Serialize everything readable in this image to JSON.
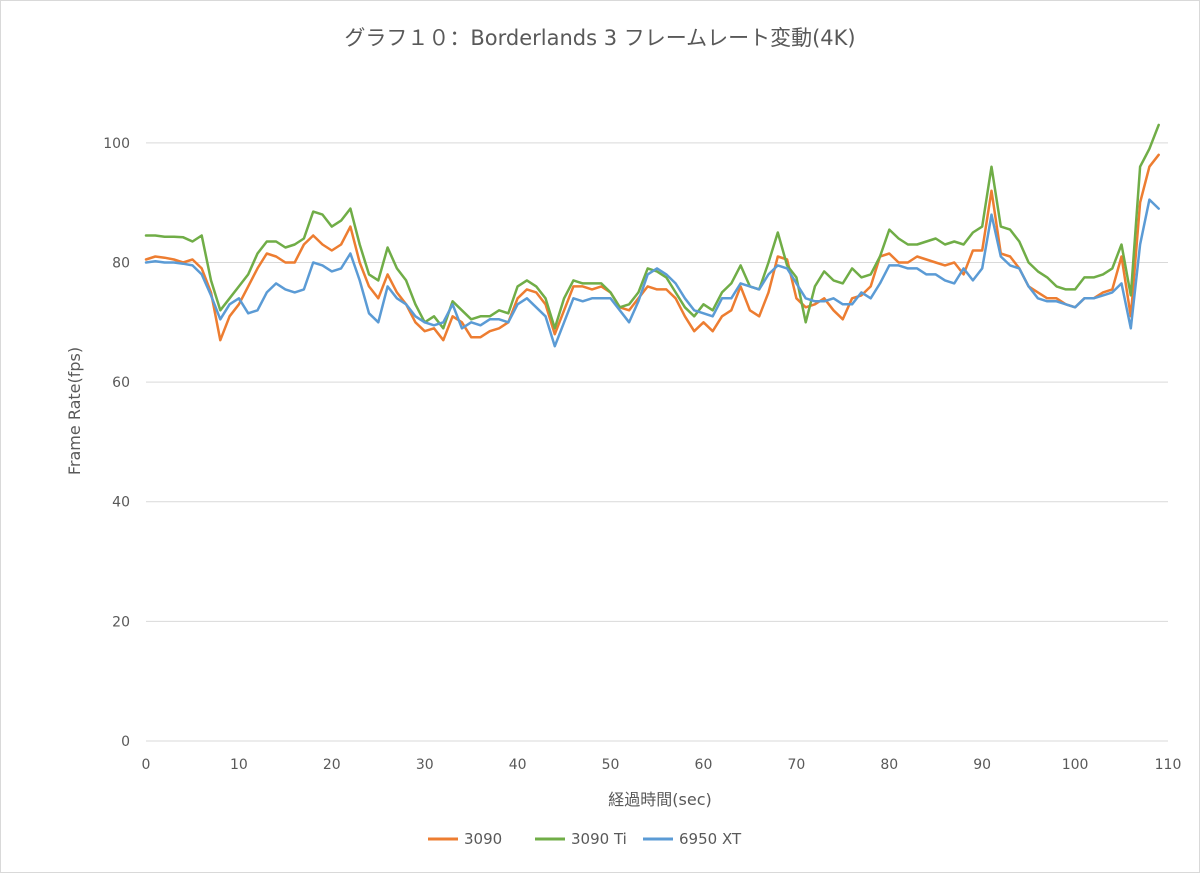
{
  "chart_data": {
    "type": "line",
    "title": "グラフ１０：Borderlands 3 フレームレート変動(4K)",
    "xlabel": "経過時間(sec)",
    "ylabel": "Frame Rate(fps)",
    "xlim": [
      0,
      110
    ],
    "ylim": [
      0,
      110
    ],
    "x_ticks": [
      "0",
      "10",
      "20",
      "30",
      "40",
      "50",
      "60",
      "70",
      "80",
      "90",
      "100",
      "110"
    ],
    "y_ticks": [
      "0",
      "20",
      "40",
      "60",
      "80",
      "100"
    ],
    "grid": "horizontal",
    "legend": "bottom",
    "x": [
      0,
      1,
      2,
      3,
      4,
      5,
      6,
      7,
      8,
      9,
      10,
      11,
      12,
      13,
      14,
      15,
      16,
      17,
      18,
      19,
      20,
      21,
      22,
      23,
      24,
      25,
      26,
      27,
      28,
      29,
      30,
      31,
      32,
      33,
      34,
      35,
      36,
      37,
      38,
      39,
      40,
      41,
      42,
      43,
      44,
      45,
      46,
      47,
      48,
      49,
      50,
      51,
      52,
      53,
      54,
      55,
      56,
      57,
      58,
      59,
      60,
      61,
      62,
      63,
      64,
      65,
      66,
      67,
      68,
      69,
      70,
      71,
      72,
      73,
      74,
      75,
      76,
      77,
      78,
      79,
      80,
      81,
      82,
      83,
      84,
      85,
      86,
      87,
      88,
      89,
      90,
      91,
      92,
      93,
      94,
      95,
      96,
      97,
      98,
      99,
      100,
      101,
      102,
      103,
      104,
      105,
      106,
      107,
      108,
      109
    ],
    "series": [
      {
        "name": "3090",
        "color": "#ed7d31",
        "values": [
          80.5,
          81,
          80.8,
          80.5,
          80,
          80.5,
          79,
          75,
          67,
          71,
          73,
          76,
          79,
          81.5,
          81,
          80,
          80,
          83,
          84.5,
          83,
          82,
          83,
          86,
          80,
          76,
          74,
          78,
          75,
          73,
          70,
          68.5,
          69,
          67,
          71,
          70,
          67.5,
          67.5,
          68.5,
          69,
          70,
          74,
          75.5,
          75,
          73,
          68,
          72,
          76,
          76,
          75.5,
          76,
          75,
          72.5,
          72,
          74,
          76,
          75.5,
          75.5,
          74,
          71,
          68.5,
          70,
          68.5,
          71,
          72,
          76,
          72,
          71,
          75,
          81,
          80.5,
          74,
          72.5,
          73,
          74,
          72,
          70.5,
          74,
          74.5,
          76,
          81,
          81.5,
          80,
          80,
          81,
          80.5,
          80,
          79.5,
          80,
          78,
          82,
          82,
          92,
          81.5,
          81,
          79,
          76,
          75,
          74,
          74,
          73,
          72.5,
          74,
          74,
          75,
          75.5,
          81,
          71,
          90,
          96,
          98
        ]
      },
      {
        "name": "3090 Ti",
        "color": "#70ad47",
        "values": [
          84.5,
          84.5,
          84.3,
          84.3,
          84.2,
          83.5,
          84.5,
          77,
          72,
          74,
          76,
          78,
          81.5,
          83.5,
          83.5,
          82.5,
          83,
          84,
          88.5,
          88,
          86,
          87,
          89,
          83,
          78,
          77,
          82.5,
          79,
          77,
          73,
          70,
          71,
          69,
          73.5,
          72,
          70.5,
          71,
          71,
          72,
          71.5,
          76,
          77,
          76,
          74,
          69,
          74,
          77,
          76.5,
          76.5,
          76.5,
          75,
          72.5,
          73,
          75,
          79,
          78.5,
          77.5,
          75,
          72.5,
          71,
          73,
          72,
          75,
          76.5,
          79.5,
          76,
          75.5,
          80,
          85,
          79.5,
          77.5,
          70,
          76,
          78.5,
          77,
          76.5,
          79,
          77.5,
          78,
          81,
          85.5,
          84,
          83,
          83,
          83.5,
          84,
          83,
          83.5,
          83,
          85,
          86,
          96,
          86,
          85.5,
          83.5,
          80,
          78.5,
          77.5,
          76,
          75.5,
          75.5,
          77.5,
          77.5,
          78,
          79,
          83,
          74.5,
          96,
          99,
          103
        ]
      },
      {
        "name": "6950 XT",
        "color": "#5b9bd5",
        "values": [
          80,
          80.2,
          80,
          80,
          79.8,
          79.5,
          78,
          74.5,
          70.5,
          73,
          74,
          71.5,
          72,
          75,
          76.5,
          75.5,
          75,
          75.5,
          80,
          79.5,
          78.5,
          79,
          81.5,
          77,
          71.5,
          70,
          76,
          74,
          73,
          71,
          70,
          69.5,
          70,
          73,
          69,
          70,
          69.5,
          70.5,
          70.5,
          70,
          73,
          74,
          72.5,
          71,
          66,
          70,
          74,
          73.5,
          74,
          74,
          74,
          72,
          70,
          73.5,
          78,
          79,
          78,
          76.5,
          74,
          72,
          71.5,
          71,
          74,
          74,
          76.5,
          76,
          75.5,
          78,
          79.5,
          79,
          76.5,
          74,
          73.5,
          73.5,
          74,
          73,
          73,
          75,
          74,
          76.5,
          79.5,
          79.5,
          79,
          79,
          78,
          78,
          77,
          76.5,
          79,
          77,
          79,
          88,
          81,
          79.5,
          79,
          76,
          74,
          73.5,
          73.5,
          73,
          72.5,
          74,
          74,
          74.5,
          75,
          76.5,
          69,
          83,
          90.5,
          89
        ]
      }
    ]
  }
}
